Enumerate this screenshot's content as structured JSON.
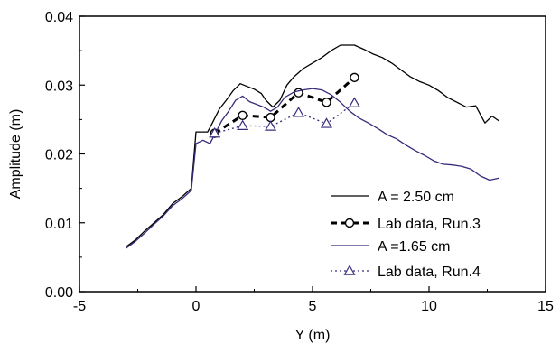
{
  "chart_data": {
    "type": "line",
    "xlabel": "Y (m)",
    "ylabel": "Amplitude (m)",
    "xlim": [
      -5,
      15
    ],
    "ylim": [
      0,
      0.04
    ],
    "x_ticks": [
      -5,
      0,
      5,
      10,
      15
    ],
    "x_tick_labels": [
      "-5",
      "0",
      "5",
      "10",
      "15"
    ],
    "y_ticks": [
      0,
      0.01,
      0.02,
      0.03,
      0.04
    ],
    "y_tick_labels": [
      "0.00",
      "0.01",
      "0.02",
      "0.03",
      "0.04"
    ],
    "grid": false,
    "legend_position": "bottom-right",
    "series": [
      {
        "name": "A = 2.50 cm",
        "style": "solid",
        "color": "#000000",
        "marker": "none",
        "points": [
          [
            -3.0,
            0.0065
          ],
          [
            -2.6,
            0.0075
          ],
          [
            -2.2,
            0.0088
          ],
          [
            -1.8,
            0.01
          ],
          [
            -1.4,
            0.0112
          ],
          [
            -1.0,
            0.0128
          ],
          [
            -0.6,
            0.0138
          ],
          [
            -0.2,
            0.015
          ],
          [
            0.0,
            0.0232
          ],
          [
            0.3,
            0.0232
          ],
          [
            0.5,
            0.0232
          ],
          [
            0.7,
            0.0245
          ],
          [
            1.0,
            0.0265
          ],
          [
            1.3,
            0.0278
          ],
          [
            1.6,
            0.0292
          ],
          [
            1.9,
            0.0302
          ],
          [
            2.2,
            0.0298
          ],
          [
            2.5,
            0.0294
          ],
          [
            2.8,
            0.0288
          ],
          [
            3.0,
            0.0278
          ],
          [
            3.3,
            0.0268
          ],
          [
            3.6,
            0.0278
          ],
          [
            3.9,
            0.03
          ],
          [
            4.2,
            0.0312
          ],
          [
            4.6,
            0.0324
          ],
          [
            5.0,
            0.0332
          ],
          [
            5.4,
            0.034
          ],
          [
            5.8,
            0.035
          ],
          [
            6.2,
            0.0358
          ],
          [
            6.8,
            0.0358
          ],
          [
            7.2,
            0.0352
          ],
          [
            7.6,
            0.0345
          ],
          [
            8.0,
            0.034
          ],
          [
            8.4,
            0.0332
          ],
          [
            8.8,
            0.0322
          ],
          [
            9.2,
            0.0312
          ],
          [
            9.6,
            0.0305
          ],
          [
            10.0,
            0.03
          ],
          [
            10.4,
            0.0292
          ],
          [
            10.8,
            0.0282
          ],
          [
            11.2,
            0.0275
          ],
          [
            11.6,
            0.0268
          ],
          [
            12.0,
            0.027
          ],
          [
            12.4,
            0.0245
          ],
          [
            12.7,
            0.0255
          ],
          [
            13.0,
            0.0248
          ]
        ]
      },
      {
        "name": "Lab data, Run.3",
        "style": "dashed-bold",
        "color": "#000000",
        "marker": "circle",
        "points": [
          [
            0.8,
            0.023
          ],
          [
            2.0,
            0.0256
          ],
          [
            3.2,
            0.0253
          ],
          [
            4.4,
            0.0289
          ],
          [
            5.6,
            0.0275
          ],
          [
            6.8,
            0.0311
          ]
        ]
      },
      {
        "name": "A =1.65 cm",
        "style": "solid",
        "color": "#3a2a7a",
        "marker": "none",
        "points": [
          [
            -3.0,
            0.0063
          ],
          [
            -2.6,
            0.0073
          ],
          [
            -2.2,
            0.0085
          ],
          [
            -1.8,
            0.0098
          ],
          [
            -1.4,
            0.011
          ],
          [
            -1.0,
            0.0125
          ],
          [
            -0.6,
            0.0135
          ],
          [
            -0.2,
            0.0147
          ],
          [
            0.0,
            0.0215
          ],
          [
            0.3,
            0.022
          ],
          [
            0.6,
            0.0215
          ],
          [
            0.8,
            0.0228
          ],
          [
            1.1,
            0.0248
          ],
          [
            1.4,
            0.0262
          ],
          [
            1.7,
            0.0278
          ],
          [
            2.0,
            0.0284
          ],
          [
            2.3,
            0.0276
          ],
          [
            2.6,
            0.0272
          ],
          [
            2.9,
            0.0268
          ],
          [
            3.2,
            0.0262
          ],
          [
            3.5,
            0.0268
          ],
          [
            3.8,
            0.0282
          ],
          [
            4.2,
            0.029
          ],
          [
            4.6,
            0.0293
          ],
          [
            5.0,
            0.0295
          ],
          [
            5.4,
            0.0293
          ],
          [
            5.8,
            0.0286
          ],
          [
            6.2,
            0.0275
          ],
          [
            6.6,
            0.0262
          ],
          [
            7.0,
            0.0252
          ],
          [
            7.4,
            0.0245
          ],
          [
            7.8,
            0.0237
          ],
          [
            8.2,
            0.0228
          ],
          [
            8.6,
            0.0222
          ],
          [
            9.0,
            0.0213
          ],
          [
            9.4,
            0.0205
          ],
          [
            9.8,
            0.0198
          ],
          [
            10.2,
            0.019
          ],
          [
            10.6,
            0.0185
          ],
          [
            11.0,
            0.0184
          ],
          [
            11.4,
            0.0182
          ],
          [
            11.8,
            0.0178
          ],
          [
            12.2,
            0.0168
          ],
          [
            12.6,
            0.0162
          ],
          [
            13.0,
            0.0165
          ]
        ]
      },
      {
        "name": "Lab data, Run.4",
        "style": "dotted",
        "color": "#3a2a7a",
        "marker": "triangle",
        "points": [
          [
            0.8,
            0.023
          ],
          [
            2.0,
            0.0241
          ],
          [
            3.2,
            0.024
          ],
          [
            4.4,
            0.026
          ],
          [
            5.6,
            0.0244
          ],
          [
            6.8,
            0.0274
          ]
        ]
      }
    ]
  }
}
